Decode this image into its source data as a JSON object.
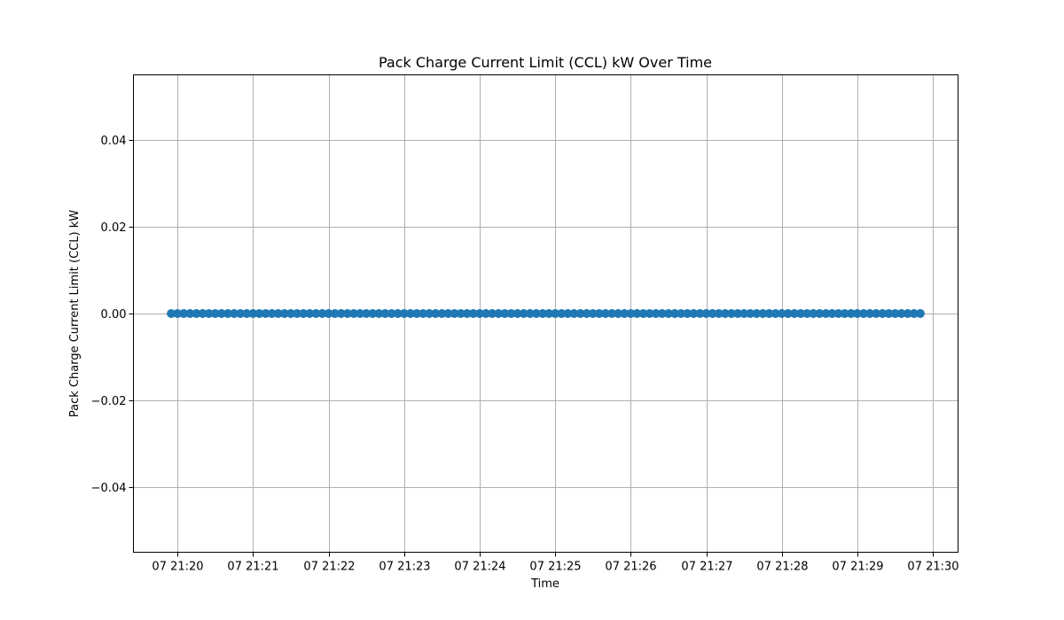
{
  "chart_data": {
    "type": "scatter",
    "title": "Pack Charge Current Limit (CCL) kW Over Time",
    "xlabel": "Time",
    "ylabel": "Pack Charge Current Limit (CCL) kW",
    "x_start": "21:19:55",
    "x_end": "21:29:50",
    "x_lim": [
      "21:19:25",
      "21:30:20"
    ],
    "ylim": [
      -0.055,
      0.055
    ],
    "x_ticks": [
      "07 21:20",
      "07 21:21",
      "07 21:22",
      "07 21:23",
      "07 21:24",
      "07 21:25",
      "07 21:26",
      "07 21:27",
      "07 21:28",
      "07 21:29",
      "07 21:30"
    ],
    "x_tick_times": [
      "21:20",
      "21:21",
      "21:22",
      "21:23",
      "21:24",
      "21:25",
      "21:26",
      "21:27",
      "21:28",
      "21:29",
      "21:30"
    ],
    "y_ticks": [
      0.04,
      0.02,
      0.0,
      -0.02,
      -0.04
    ],
    "y_tick_labels": [
      "0.04",
      "0.02",
      "0.00",
      "−0.02",
      "−0.04"
    ],
    "series": [
      {
        "color": "#1f77b4",
        "sample_interval_s": 5,
        "value": 0.0
      }
    ],
    "grid": true
  }
}
